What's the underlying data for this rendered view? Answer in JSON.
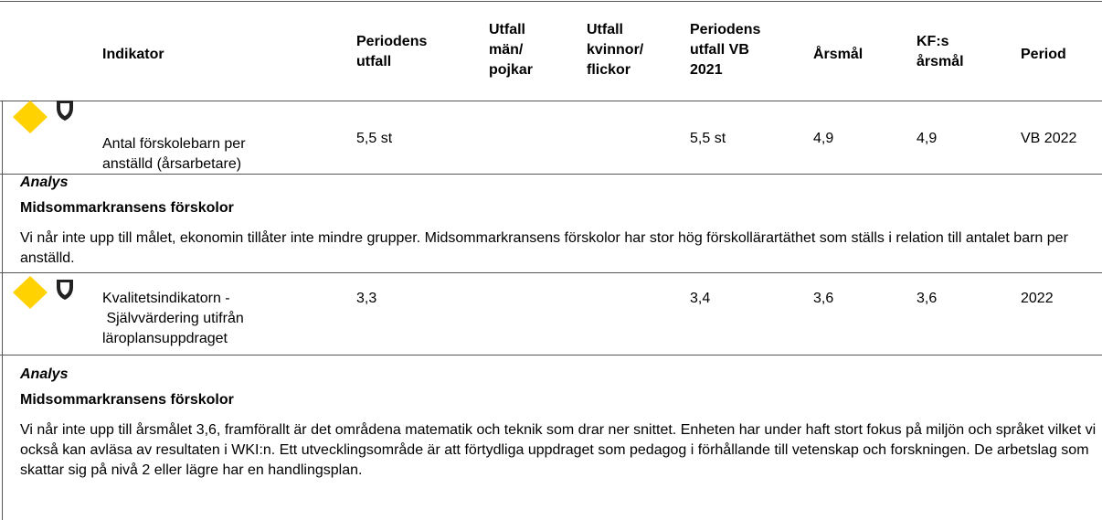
{
  "header": {
    "columns": [
      "Indikator",
      "Periodens\nutfall",
      "Utfall\nmän/\npojkar",
      "Utfall\nkvinnor/\nflickor",
      "Periodens\nutfall VB\n2021",
      "Årsmål",
      "KF:s\nårsmål",
      "Period"
    ]
  },
  "rows": [
    {
      "cells": [
        "Antal förskolebarn per\nanställd (årsarbetare)",
        "5,5 st",
        "",
        "",
        "5,5 st",
        "4,9",
        "4,9",
        "VB 2022"
      ],
      "analysis": {
        "label": "Analys",
        "heading": "Midsommarkransens förskolor",
        "text": "Vi når inte upp till målet, ekonomin tillåter inte mindre grupper.  Midsommarkransens förskolor har stor hög förskollärartäthet som ställs i relation till antalet barn per anställd."
      }
    },
    {
      "cells": [
        "Kvalitetsindikatorn -\n Självvärdering utifrån\nläroplansuppdraget",
        "3,3",
        "",
        "",
        "3,4",
        "3,6",
        "3,6",
        "2022"
      ],
      "analysis": {
        "label": "Analys",
        "heading": "Midsommarkransens förskolor",
        "text": "Vi når inte upp till årsmålet 3,6, framförallt är det områdena matematik och teknik som drar ner snittet. Enheten har under haft stort fokus på miljön och språket vilket vi också kan avläsa av resultaten i WKI:n. Ett utvecklingsområde är att förtydliga uppdraget som pedagog i förhållande till vetenskap och forskningen. De arbetslag som skattar sig på nivå 2 eller lägre  har en handlingsplan."
      }
    }
  ]
}
